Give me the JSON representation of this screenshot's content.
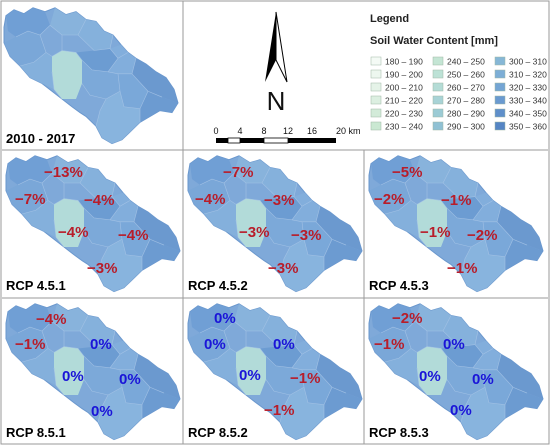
{
  "legend": {
    "title": "Legend",
    "subtitle": "Soil Water Content [mm]",
    "classes": [
      {
        "label": "180 – 190",
        "color": "#f4faf5"
      },
      {
        "label": "190 – 200",
        "color": "#edf7ef"
      },
      {
        "label": "200 – 210",
        "color": "#e5f3e8"
      },
      {
        "label": "210 – 220",
        "color": "#dcefe1"
      },
      {
        "label": "220 – 230",
        "color": "#d3ebd9"
      },
      {
        "label": "230 – 240",
        "color": "#cae8d2"
      },
      {
        "label": "240 – 250",
        "color": "#c4e5d4"
      },
      {
        "label": "250 – 260",
        "color": "#bde2d6"
      },
      {
        "label": "260 – 270",
        "color": "#b4dcd6"
      },
      {
        "label": "270 – 280",
        "color": "#a8d3d6"
      },
      {
        "label": "280 – 290",
        "color": "#9ccbd5"
      },
      {
        "label": "290 – 300",
        "color": "#90c1d4"
      },
      {
        "label": "300 – 310",
        "color": "#86b7d6"
      },
      {
        "label": "310 – 320",
        "color": "#7daed6"
      },
      {
        "label": "320 – 330",
        "color": "#74a5d4"
      },
      {
        "label": "330 – 340",
        "color": "#6a9ad0"
      },
      {
        "label": "340 – 350",
        "color": "#5f8fca"
      },
      {
        "label": "350 – 360",
        "color": "#5585c4"
      }
    ]
  },
  "north_arrow": {
    "letter": "N"
  },
  "scale_bar": {
    "ticks": [
      "0",
      "4",
      "8",
      "12",
      "16",
      "20 km"
    ]
  },
  "colors": {
    "negative_change": "#b81d2a",
    "zero_change": "#1a14d8",
    "basin_base": "#7fa9d9",
    "basin_light": "#a9d2d8",
    "basin_dark": "#5c8ac6",
    "border": "#6a97cd"
  },
  "panels": [
    {
      "label": "2010 - 2017",
      "changes": {
        "nw": "",
        "w": "",
        "n": "",
        "c": "",
        "e": "",
        "s": ""
      }
    },
    {
      "label": "RCP 4.5.1",
      "changes": {
        "nw": "−13%",
        "w": "−7%",
        "n": "−4%",
        "c": "−4%",
        "e": "−4%",
        "s": "−3%"
      }
    },
    {
      "label": "RCP 4.5.2",
      "changes": {
        "nw": "−7%",
        "w": "−4%",
        "n": "−3%",
        "c": "−3%",
        "e": "−3%",
        "s": "−3%"
      }
    },
    {
      "label": "RCP 4.5.3",
      "changes": {
        "nw": "−5%",
        "w": "−2%",
        "n": "−1%",
        "c": "−1%",
        "e": "−2%",
        "s": "−1%"
      }
    },
    {
      "label": "RCP 8.5.1",
      "changes": {
        "nw": "−4%",
        "w": "−1%",
        "n": "0%",
        "c": "0%",
        "e": "0%",
        "s": "0%"
      }
    },
    {
      "label": "RCP 8.5.2",
      "changes": {
        "nw": "0%",
        "w": "0%",
        "n": "0%",
        "c": "0%",
        "e": "−1%",
        "s": "−1%"
      }
    },
    {
      "label": "RCP 8.5.3",
      "changes": {
        "nw": "−2%",
        "w": "−1%",
        "n": "0%",
        "c": "0%",
        "e": "0%",
        "s": "0%"
      }
    }
  ]
}
